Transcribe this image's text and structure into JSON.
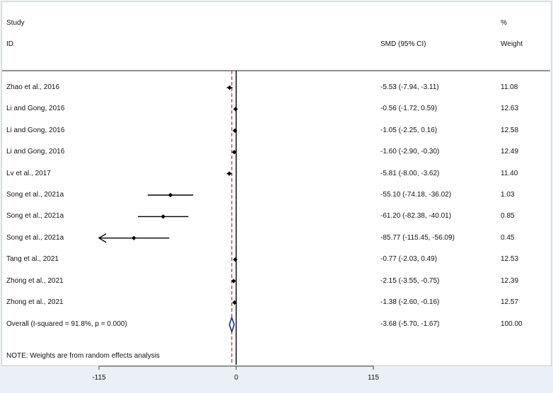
{
  "headers": {
    "study_top": "Study",
    "study_bottom": "ID",
    "estimate": "SMD (95% CI)",
    "weight_top": "%",
    "weight_bottom": "Weight"
  },
  "note": "NOTE: Weights are from random effects analysis",
  "chart_data": {
    "type": "forest",
    "xlim": [
      -160,
      160
    ],
    "x_ticks": [
      -115,
      0,
      115
    ],
    "x_tick_labels": [
      "-115",
      "0",
      "115"
    ],
    "null_line": 0,
    "pooled_line": -3.68,
    "studies": [
      {
        "label": "Zhao et al., 2016",
        "est": -5.53,
        "lo": -7.94,
        "hi": -3.11,
        "ci": "-5.53 (-7.94, -3.11)",
        "weight": "11.08"
      },
      {
        "label": "Li and Gong, 2016",
        "est": -0.56,
        "lo": -1.72,
        "hi": 0.59,
        "ci": "-0.56 (-1.72, 0.59)",
        "weight": "12.63"
      },
      {
        "label": "Li and Gong, 2016",
        "est": -1.05,
        "lo": -2.25,
        "hi": 0.16,
        "ci": "-1.05 (-2.25, 0.16)",
        "weight": "12.58"
      },
      {
        "label": "Li and Gong, 2016",
        "est": -1.6,
        "lo": -2.9,
        "hi": -0.3,
        "ci": "-1.60 (-2.90, -0.30)",
        "weight": "12.49"
      },
      {
        "label": "Lv et al., 2017",
        "est": -5.81,
        "lo": -8.0,
        "hi": -3.62,
        "ci": "-5.81 (-8.00, -3.62)",
        "weight": "11.40"
      },
      {
        "label": "Song et al., 2021a",
        "est": -55.1,
        "lo": -74.18,
        "hi": -36.02,
        "ci": "-55.10 (-74.18, -36.02)",
        "weight": "1.03"
      },
      {
        "label": "Song et al., 2021a",
        "est": -61.2,
        "lo": -82.38,
        "hi": -40.01,
        "ci": "-61.20 (-82.38, -40.01)",
        "weight": "0.85"
      },
      {
        "label": "Song et al., 2021a",
        "est": -85.77,
        "lo": -115.45,
        "hi": -56.09,
        "ci": "-85.77 (-115.45, -56.09)",
        "weight": "0.45"
      },
      {
        "label": "Tang et al., 2021",
        "est": -0.77,
        "lo": -2.03,
        "hi": 0.49,
        "ci": "-0.77 (-2.03, 0.49)",
        "weight": "12.53"
      },
      {
        "label": "Zhong et al., 2021",
        "est": -2.15,
        "lo": -3.55,
        "hi": -0.75,
        "ci": "-2.15 (-3.55, -0.75)",
        "weight": "12.39"
      },
      {
        "label": "Zhong et al., 2021",
        "est": -1.38,
        "lo": -2.6,
        "hi": -0.16,
        "ci": "-1.38 (-2.60, -0.16)",
        "weight": "12.57"
      }
    ],
    "overall": {
      "label": "Overall  (I-squared = 91.8%, p = 0.000)",
      "est": -3.68,
      "lo": -5.7,
      "hi": -1.67,
      "ci": "-3.68 (-5.70, -1.67)",
      "weight": "100.00"
    },
    "colors": {
      "null_line": "#000000",
      "pooled_line": "#b0303a",
      "diamond": "#1f2a7a",
      "markers": "#000000"
    }
  }
}
